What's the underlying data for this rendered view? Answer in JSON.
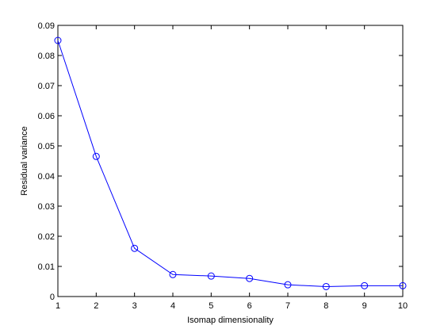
{
  "chart_data": {
    "type": "line",
    "x_label": "Isomap dimensionality",
    "y_label": "Residual variance",
    "x": [
      1,
      2,
      3,
      4,
      5,
      6,
      7,
      8,
      9,
      10
    ],
    "series": [
      {
        "color": "#0000ff",
        "marker": "circle",
        "values": [
          0.085,
          0.0465,
          0.016,
          0.0073,
          0.0068,
          0.006,
          0.0039,
          0.0033,
          0.0036,
          0.0036
        ]
      }
    ],
    "xlim": [
      1,
      10
    ],
    "xticks": [
      1,
      2,
      3,
      4,
      5,
      6,
      7,
      8,
      9,
      10
    ],
    "ylim": [
      0,
      0.09
    ],
    "yticks": [
      0,
      0.01,
      0.02,
      0.03,
      0.04,
      0.05,
      0.06,
      0.07,
      0.08,
      0.09
    ],
    "grid": false
  }
}
